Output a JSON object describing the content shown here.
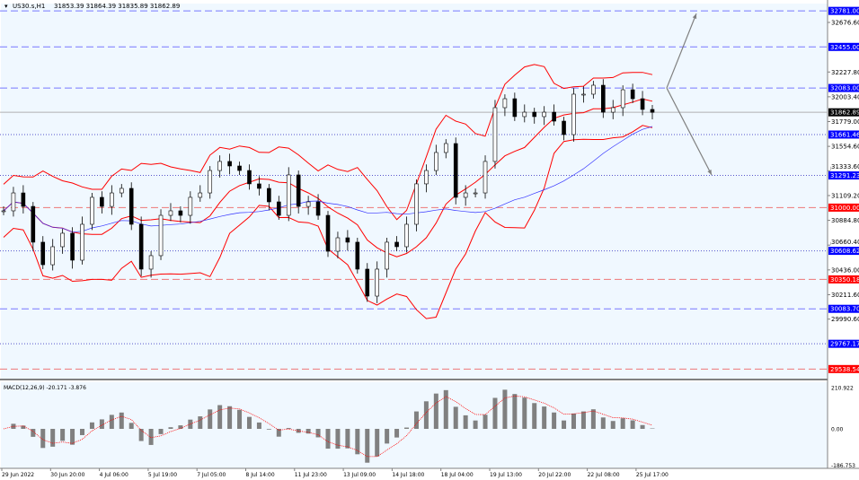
{
  "header": {
    "symbol": "US30.s,H1",
    "ohlc": "31853.39 31864.39 31835.89 31862.89"
  },
  "colors": {
    "background": "#f0f8ff",
    "bands": "#ff0000",
    "ma": "#3333ff",
    "candle": "#000000",
    "support": "#0000ff",
    "resistance": "#ff0000",
    "arrow": "#808080",
    "macd_hist": "#808080",
    "macd_signal": "#ff0000"
  },
  "chart_data": [
    {
      "type": "candlestick",
      "title": "US30.s,H1",
      "close": [
        30971,
        31133,
        31011,
        30687,
        30483,
        30646,
        30768,
        30524,
        30849,
        31093,
        31011,
        31133,
        31174,
        30849,
        30443,
        30565,
        30930,
        30971,
        30930,
        31093,
        31133,
        31336,
        31418,
        31377,
        31336,
        31215,
        31174,
        31052,
        30930,
        31296,
        31011,
        31052,
        30930,
        30605,
        30727,
        30687,
        30443,
        30199,
        30443,
        30687,
        30646,
        30849,
        31215,
        31336,
        31499,
        31580,
        31093,
        31133,
        31133,
        31418,
        31905,
        31986,
        31824,
        31864,
        31824,
        31864,
        31783,
        31661,
        32027,
        32027,
        32108,
        31864,
        31905,
        32067,
        31986,
        31889,
        31862.89
      ],
      "current_price": 31862.89,
      "current_price_label": "31862.89",
      "y_ticks": [
        "32676.60",
        "32227.80",
        "32003.40",
        "31779.00",
        "31554.60",
        "31333.60",
        "31109.20",
        "30884.80",
        "30660.40",
        "30436.00",
        "30211.60",
        "29990.60"
      ],
      "levels": [
        {
          "price": 32781.0,
          "label": "32781.00",
          "kind": "support",
          "style": "dashed"
        },
        {
          "price": 32455.0,
          "label": "32455.00",
          "kind": "support",
          "style": "dashed"
        },
        {
          "price": 32083.0,
          "label": "32083.00",
          "kind": "support",
          "style": "dashed"
        },
        {
          "price": 31661.46,
          "label": "31661.46",
          "kind": "support",
          "style": "dotted"
        },
        {
          "price": 31291.23,
          "label": "31291.23",
          "kind": "support",
          "style": "dotted"
        },
        {
          "price": 31000.0,
          "label": "31000.00",
          "kind": "resistance",
          "style": "dashed"
        },
        {
          "price": 30608.62,
          "label": "30608.62",
          "kind": "support",
          "style": "dotted"
        },
        {
          "price": 30350.18,
          "label": "30350.18",
          "kind": "resistance",
          "style": "dashed"
        },
        {
          "price": 30083.7,
          "label": "30083.70",
          "kind": "support",
          "style": "dashed"
        },
        {
          "price": 29767.17,
          "label": "29767.17",
          "kind": "support",
          "style": "dotted"
        },
        {
          "price": 29538.54,
          "label": "29538.54",
          "kind": "resistance",
          "style": "dashed"
        }
      ],
      "arrows": [
        {
          "from": 32083,
          "to": 32757,
          "direction": "up"
        },
        {
          "from": 32083,
          "to": 31296,
          "direction": "down"
        }
      ],
      "x_ticks": [
        "29 Jun 2022",
        "30 Jun 20:00",
        "4 Jul 06:00",
        "5 Jul 19:00",
        "7 Jul 05:00",
        "8 Jul 14:00",
        "11 Jul 23:00",
        "13 Jul 09:00",
        "14 Jul 18:00",
        "18 Jul 04:00",
        "19 Jul 13:00",
        "20 Jul 22:00",
        "22 Jul 08:00",
        "25 Jul 17:00"
      ]
    },
    {
      "type": "bar",
      "title": "MACD(12,26,9) -20.171 -3.876",
      "y_ticks": [
        "210.922",
        "0.00",
        "-186.753"
      ],
      "ylim": [
        -186.753,
        210.922
      ]
    }
  ]
}
